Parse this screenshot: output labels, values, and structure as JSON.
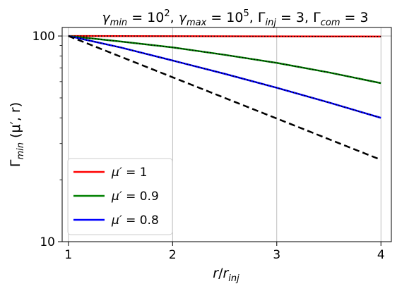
{
  "chart_data": {
    "type": "line",
    "title_parts": {
      "gmin_sym": "γ",
      "gmin_sub": "min",
      "gmin_eq": " = 10",
      "gmin_sup": "2",
      "sep1": ", ",
      "gmax_sym": "γ",
      "gmax_sub": "max",
      "gmax_eq": " = 10",
      "gmax_sup": "5",
      "sep2": ", ",
      "ginj_sym": "Γ",
      "ginj_sub": "inj",
      "ginj_eq": " = 3",
      "sep3": ", ",
      "gcom_sym": "Γ",
      "gcom_sub": "com",
      "gcom_eq": " = 3"
    },
    "xlabel_parts": {
      "r": "r",
      "slash": "/",
      "rinj": "r",
      "rinj_sub": "inj"
    },
    "ylabel_parts": {
      "G": "Γ",
      "G_sub": "min",
      "args": " (μ′, r)"
    },
    "x_scale": "linear",
    "y_scale": "log",
    "xlim": [
      0.94,
      4.1
    ],
    "ylim": [
      10,
      110
    ],
    "x_ticks": [
      {
        "value": 1,
        "label": "1"
      },
      {
        "value": 2,
        "label": "2"
      },
      {
        "value": 3,
        "label": "3"
      },
      {
        "value": 4,
        "label": "4"
      }
    ],
    "y_ticks": [
      {
        "value": 10,
        "label": "10"
      },
      {
        "value": 100,
        "label": "100"
      }
    ],
    "grid": "vertical major lines at x ticks and horizontal line at y = 100",
    "legend_position": "lower-left",
    "series": [
      {
        "name_sym": "μ′",
        "name_eq": " = 1",
        "color": "#ff0000",
        "style": "solid",
        "overlay": "dotted-black",
        "x": [
          1.0,
          1.5,
          2.0,
          2.5,
          3.0,
          3.5,
          4.0
        ],
        "y": [
          100,
          99.9,
          99.8,
          99.7,
          99.6,
          99.5,
          99.4
        ]
      },
      {
        "name_sym": "μ′",
        "name_eq": " = 0.9",
        "color": "#008000",
        "style": "solid",
        "overlay": "dotted-black",
        "x": [
          1.0,
          1.5,
          2.0,
          2.5,
          3.0,
          3.5,
          4.0
        ],
        "y": [
          100,
          94.0,
          88.0,
          81.0,
          74.0,
          66.5,
          59.0
        ]
      },
      {
        "name_sym": "μ′",
        "name_eq": " = 0.8",
        "color": "#0000ff",
        "style": "solid",
        "overlay": "dotted-black",
        "x": [
          1.0,
          1.5,
          2.0,
          2.5,
          3.0,
          3.5,
          4.0
        ],
        "y": [
          100,
          88.0,
          76.0,
          65.5,
          56.0,
          47.5,
          40.0
        ]
      },
      {
        "color": "#000000",
        "style": "dashed",
        "x": [
          1.0,
          2.0,
          3.0,
          4.0
        ],
        "y": [
          100,
          63.0,
          39.7,
          25.0
        ]
      }
    ]
  }
}
